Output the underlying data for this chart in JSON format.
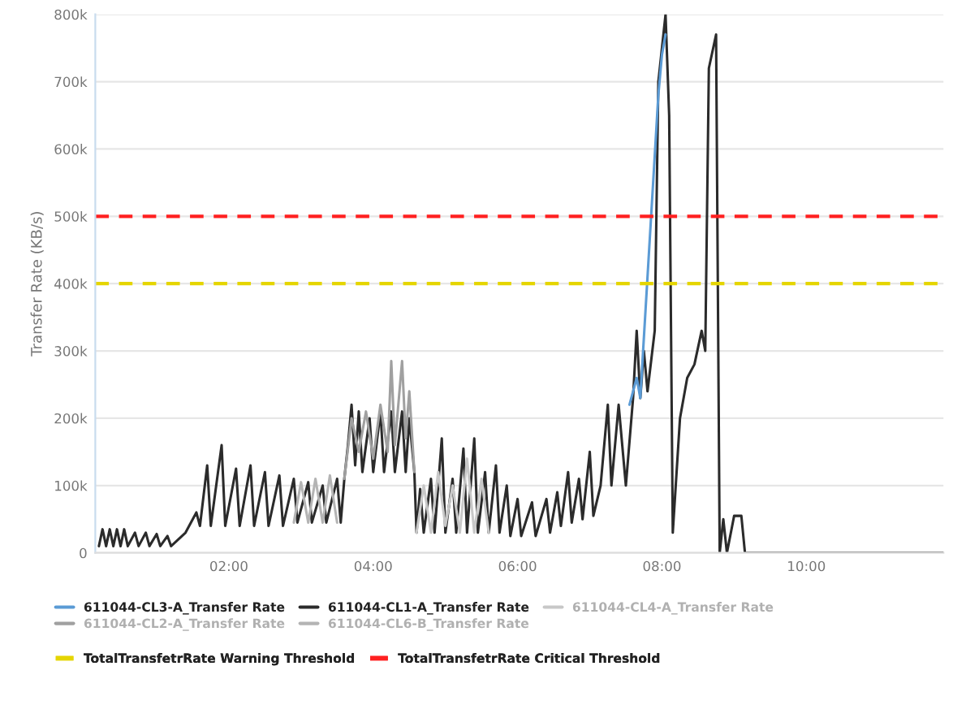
{
  "chart_data": {
    "type": "line",
    "ylabel": "Transfer Rate (KB/s)",
    "xlim": [
      0.15,
      11.9
    ],
    "xticks": [
      {
        "value": 2,
        "label": "02:00"
      },
      {
        "value": 4,
        "label": "04:00"
      },
      {
        "value": 6,
        "label": "06:00"
      },
      {
        "value": 8,
        "label": "08:00"
      },
      {
        "value": 10,
        "label": "10:00"
      }
    ],
    "ylim": [
      0,
      800000
    ],
    "yticks": [
      0,
      {
        "value": 100000,
        "label": "100k"
      },
      {
        "value": 200000,
        "label": "200k"
      },
      {
        "value": 300000,
        "label": "300k"
      },
      {
        "value": 400000,
        "label": "400k"
      },
      {
        "value": 500000,
        "label": "500k"
      },
      {
        "value": 600000,
        "label": "600k"
      },
      {
        "value": 700000,
        "label": "700k"
      },
      {
        "value": 800000,
        "label": "800k"
      }
    ],
    "grid": "y",
    "legend": "bottom",
    "marker": "none",
    "line_style": "solid",
    "series": [
      {
        "name": "611044-CL3-A_Transfer Rate",
        "color": "#5b9bd5",
        "x": [
          7.55,
          7.6,
          7.65,
          7.7,
          7.95,
          8.0,
          8.05
        ],
        "values": [
          220000,
          240000,
          260000,
          230000,
          680000,
          740000,
          770000
        ]
      },
      {
        "name": "611044-CL1-A_Transfer Rate",
        "color": "#2b2b2b",
        "x": [
          0.2,
          0.25,
          0.3,
          0.35,
          0.4,
          0.45,
          0.5,
          0.55,
          0.6,
          0.7,
          0.75,
          0.85,
          0.9,
          1.0,
          1.05,
          1.15,
          1.2,
          1.3,
          1.4,
          1.45,
          1.55,
          1.6,
          1.7,
          1.75,
          1.9,
          1.95,
          2.1,
          2.15,
          2.3,
          2.35,
          2.5,
          2.55,
          2.7,
          2.75,
          2.9,
          2.95,
          3.1,
          3.15,
          3.3,
          3.35,
          3.5,
          3.55,
          3.6,
          3.65,
          3.7,
          3.75,
          3.8,
          3.85,
          3.95,
          4.0,
          4.1,
          4.15,
          4.25,
          4.3,
          4.4,
          4.45,
          4.5,
          4.57,
          4.6,
          4.65,
          4.7,
          4.8,
          4.85,
          4.95,
          5.0,
          5.1,
          5.15,
          5.25,
          5.3,
          5.4,
          5.45,
          5.55,
          5.6,
          5.7,
          5.75,
          5.85,
          5.9,
          6.0,
          6.05,
          6.2,
          6.25,
          6.4,
          6.45,
          6.55,
          6.6,
          6.7,
          6.75,
          6.85,
          6.9,
          7.0,
          7.05,
          7.15,
          7.25,
          7.3,
          7.4,
          7.5,
          7.6,
          7.65,
          7.7,
          7.75,
          7.8,
          7.9,
          7.95,
          8.05,
          8.1,
          8.15,
          8.25,
          8.35,
          8.45,
          8.55,
          8.6,
          8.65,
          8.75,
          8.8,
          8.85,
          8.9,
          9.0,
          9.1,
          9.15,
          11.9
        ],
        "values": [
          10000,
          35000,
          10000,
          35000,
          10000,
          35000,
          10000,
          35000,
          10000,
          30000,
          10000,
          30000,
          10000,
          28000,
          10000,
          25000,
          10000,
          20000,
          30000,
          40000,
          60000,
          40000,
          130000,
          40000,
          160000,
          40000,
          125000,
          40000,
          130000,
          40000,
          120000,
          40000,
          115000,
          40000,
          110000,
          45000,
          105000,
          45000,
          100000,
          45000,
          110000,
          45000,
          110000,
          160000,
          220000,
          130000,
          210000,
          120000,
          200000,
          120000,
          210000,
          120000,
          210000,
          120000,
          210000,
          120000,
          200000,
          120000,
          30000,
          95000,
          30000,
          110000,
          30000,
          170000,
          30000,
          110000,
          30000,
          155000,
          30000,
          170000,
          30000,
          120000,
          30000,
          130000,
          30000,
          100000,
          25000,
          80000,
          25000,
          75000,
          25000,
          80000,
          30000,
          90000,
          40000,
          120000,
          45000,
          110000,
          50000,
          150000,
          55000,
          100000,
          220000,
          100000,
          220000,
          100000,
          230000,
          330000,
          230000,
          300000,
          240000,
          330000,
          700000,
          800000,
          650000,
          30000,
          200000,
          260000,
          280000,
          330000,
          300000,
          720000,
          770000,
          0,
          50000,
          0,
          55000,
          55000,
          0,
          0
        ]
      },
      {
        "name": "611044-CL4-A_Transfer Rate",
        "color": "#c8c8c8",
        "x": [
          4.6,
          4.7,
          4.8,
          4.9,
          5.0,
          5.1,
          5.2,
          5.3,
          5.4,
          5.5,
          5.6
        ],
        "values": [
          30000,
          100000,
          30000,
          120000,
          40000,
          100000,
          30000,
          140000,
          30000,
          110000,
          30000
        ]
      },
      {
        "name": "611044-CL2-A_Transfer Rate",
        "color": "#a0a0a0",
        "x": [
          3.6,
          3.7,
          3.8,
          3.9,
          4.0,
          4.1,
          4.2,
          4.25,
          4.3,
          4.4,
          4.45,
          4.5,
          4.57
        ],
        "values": [
          110000,
          200000,
          150000,
          210000,
          140000,
          220000,
          150000,
          285000,
          160000,
          285000,
          170000,
          240000,
          120000
        ]
      },
      {
        "name": "611044-CL6-B_Transfer Rate",
        "color": "#b4b4b4",
        "x": [
          2.9,
          3.0,
          3.1,
          3.2,
          3.3,
          3.4,
          3.5
        ],
        "values": [
          45000,
          105000,
          45000,
          110000,
          45000,
          115000,
          45000
        ]
      }
    ],
    "ref_lines": [
      {
        "axis": "y",
        "value": 400000,
        "label": "TotalTransfetrRate Warning Threshold",
        "color": "#e5d500",
        "line_style": "dashed"
      },
      {
        "axis": "y",
        "value": 500000,
        "label": "TotalTransfetrRate Critical Threshold",
        "color": "#ff2020",
        "line_style": "dashed"
      }
    ]
  }
}
